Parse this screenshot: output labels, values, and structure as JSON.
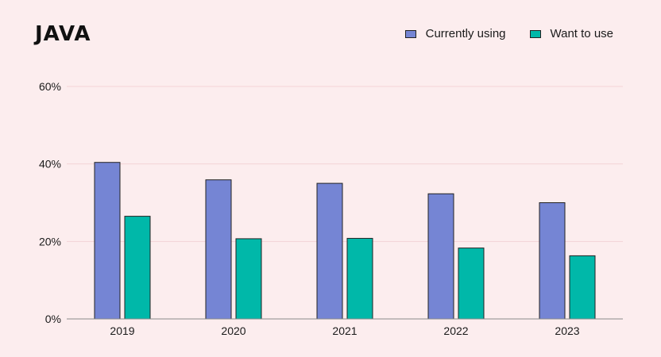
{
  "chart_data": {
    "type": "bar",
    "title": "JAVA",
    "categories": [
      "2019",
      "2020",
      "2021",
      "2022",
      "2023"
    ],
    "series": [
      {
        "name": "Currently using",
        "values": [
          40.4,
          35.9,
          35.0,
          32.3,
          30.0
        ],
        "color": "#7585d4"
      },
      {
        "name": "Want to use",
        "values": [
          26.5,
          20.7,
          20.8,
          18.3,
          16.3
        ],
        "color": "#00b8a9"
      }
    ],
    "ylim": [
      0,
      60
    ],
    "yticks": [
      0,
      20,
      40,
      60
    ],
    "ytick_labels": [
      "0%",
      "20%",
      "40%",
      "60%"
    ],
    "grid": true,
    "legend_position": "top-right",
    "xlabel": "",
    "ylabel": ""
  }
}
